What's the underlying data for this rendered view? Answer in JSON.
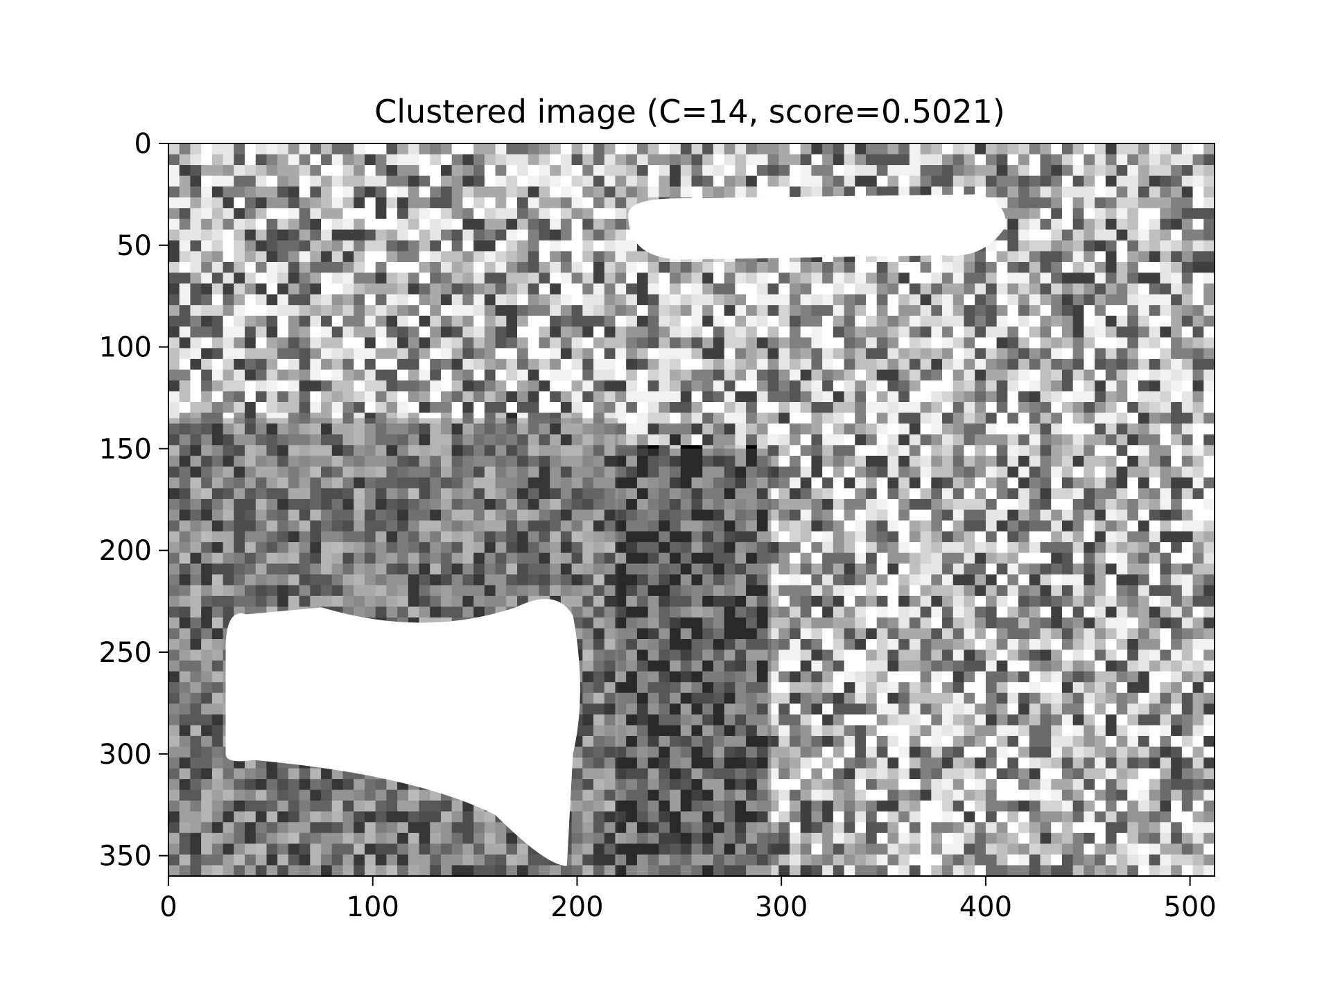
{
  "chart_data": {
    "type": "heatmap",
    "title": "Clustered image (C=14, score=0.5021)",
    "xlabel": "",
    "ylabel": "",
    "xlim": [
      0,
      512
    ],
    "ylim": [
      360,
      0
    ],
    "y_axis_inverted": true,
    "colormap": "gray",
    "grid": false,
    "legend": false,
    "x_ticks": [
      0,
      100,
      200,
      300,
      400,
      500
    ],
    "y_ticks": [
      0,
      50,
      100,
      150,
      200,
      250,
      300,
      350
    ],
    "image_size": [
      512,
      360
    ],
    "clusters": 14,
    "score": 0.5021,
    "regions": [
      {
        "name": "lower-left white blob",
        "x": [
          28,
          205
        ],
        "y": [
          228,
          355
        ],
        "level": "white"
      },
      {
        "name": "top white band",
        "x": [
          225,
          410
        ],
        "y": [
          25,
          57
        ],
        "level": "white"
      },
      {
        "name": "vertical dark-gray column",
        "x": [
          220,
          295
        ],
        "y": [
          150,
          360
        ],
        "level": "dark-gray"
      },
      {
        "name": "left mid-gray textured region",
        "x": [
          0,
          220
        ],
        "y": [
          135,
          360
        ],
        "level": "mid-gray"
      }
    ]
  }
}
